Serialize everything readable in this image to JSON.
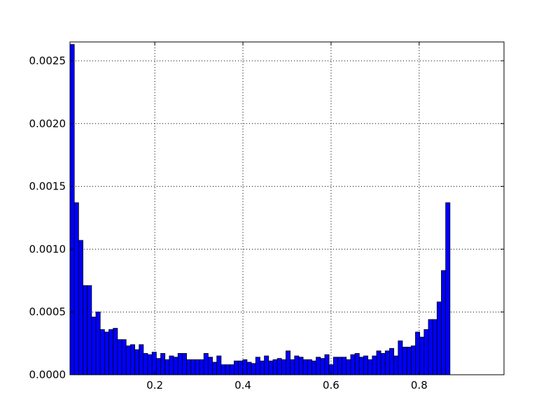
{
  "chart_data": {
    "type": "bar",
    "title": "",
    "xlabel": "",
    "ylabel": "",
    "xlim": [
      0.0075,
      0.9925
    ],
    "ylim": [
      0,
      0.00265
    ],
    "grid": true,
    "bar_color": "#0000ff",
    "edge_color": "#000000",
    "grid_color": "#000000",
    "bin_start": 0.0075,
    "bin_width": 0.0098,
    "values": [
      0.00263,
      0.00137,
      0.00107,
      0.00071,
      0.00071,
      0.00046,
      0.0005,
      0.00036,
      0.00034,
      0.00036,
      0.00037,
      0.00028,
      0.00028,
      0.00023,
      0.00024,
      0.0002,
      0.00024,
      0.00017,
      0.00016,
      0.00018,
      0.00013,
      0.00017,
      0.00012,
      0.00015,
      0.00014,
      0.00017,
      0.00017,
      0.00012,
      0.00012,
      0.00012,
      0.00012,
      0.00017,
      0.00014,
      0.0001,
      0.00015,
      8e-05,
      8e-05,
      8e-05,
      0.00011,
      0.00011,
      0.00012,
      0.0001,
      9e-05,
      0.00014,
      0.00011,
      0.00015,
      0.00011,
      0.00012,
      0.00013,
      0.00012,
      0.00019,
      0.00012,
      0.00015,
      0.00014,
      0.00012,
      0.00012,
      0.00011,
      0.00014,
      0.00013,
      0.00016,
      8e-05,
      0.00014,
      0.00014,
      0.00014,
      0.00012,
      0.00016,
      0.00017,
      0.00014,
      0.00015,
      0.00012,
      0.00015,
      0.00019,
      0.00017,
      0.00019,
      0.00021,
      0.00015,
      0.00027,
      0.00022,
      0.00022,
      0.00023,
      0.00034,
      0.0003,
      0.00036,
      0.00044,
      0.00044,
      0.00058,
      0.00083,
      0.00137
    ],
    "xticks": [
      {
        "value": 0.2,
        "label": "0.2"
      },
      {
        "value": 0.4,
        "label": "0.4"
      },
      {
        "value": 0.6,
        "label": "0.6"
      },
      {
        "value": 0.8,
        "label": "0.8"
      }
    ],
    "yticks": [
      {
        "value": 0,
        "label": "0.0000"
      },
      {
        "value": 0.0005,
        "label": "0.0005"
      },
      {
        "value": 0.001,
        "label": "0.0010"
      },
      {
        "value": 0.0015,
        "label": "0.0015"
      },
      {
        "value": 0.002,
        "label": "0.0020"
      },
      {
        "value": 0.0025,
        "label": "0.0025"
      }
    ]
  }
}
